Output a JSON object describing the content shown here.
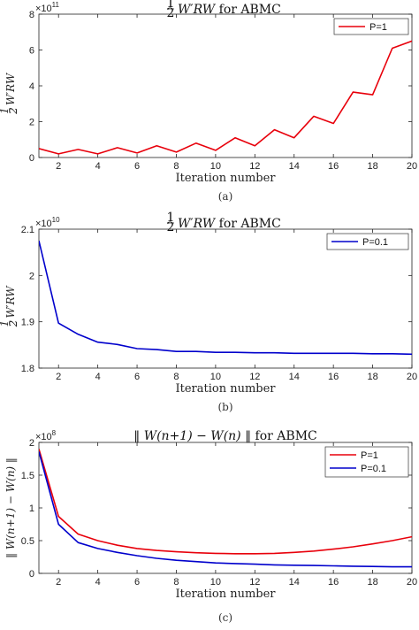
{
  "chart_data": [
    {
      "type": "line",
      "panel": "a",
      "title_frac": "1",
      "title_frac_den": "2",
      "title_math": "W′RW",
      "title_rest": " for ABMC",
      "ylabel_frac": "1",
      "ylabel_frac_den": "2",
      "ylabel_math": "W′RW",
      "xlabel": "Iteration number",
      "caption": "(a)",
      "multiplier_base": "×10",
      "multiplier_exp": "11",
      "xlim": [
        1,
        20
      ],
      "ylim": [
        0,
        8
      ],
      "xticks": [
        2,
        4,
        6,
        8,
        10,
        12,
        14,
        16,
        18,
        20
      ],
      "yticks": [
        0,
        2,
        4,
        6,
        8
      ],
      "legend_placement": "top-right",
      "grid": false,
      "series": [
        {
          "name": "P=1",
          "color": "#e8000b",
          "x": [
            1,
            2,
            3,
            4,
            5,
            6,
            7,
            8,
            9,
            10,
            11,
            12,
            13,
            14,
            15,
            16,
            17,
            18,
            19,
            20
          ],
          "values": [
            0.5,
            0.2,
            0.45,
            0.2,
            0.55,
            0.25,
            0.65,
            0.3,
            0.8,
            0.4,
            1.1,
            0.65,
            1.55,
            1.1,
            2.3,
            1.9,
            3.65,
            3.5,
            6.1,
            6.5
          ]
        }
      ]
    },
    {
      "type": "line",
      "panel": "b",
      "title_frac": "1",
      "title_frac_den": "2",
      "title_math": "W′RW",
      "title_rest": " for ABMC",
      "ylabel_frac": "1",
      "ylabel_frac_den": "2",
      "ylabel_math": "W′RW",
      "xlabel": "Iteration number",
      "caption": "(b)",
      "multiplier_base": "×10",
      "multiplier_exp": "10",
      "xlim": [
        1,
        20
      ],
      "ylim": [
        1.8,
        2.1
      ],
      "xticks": [
        2,
        4,
        6,
        8,
        10,
        12,
        14,
        16,
        18,
        20
      ],
      "yticks": [
        1.8,
        1.9,
        2.0,
        2.1
      ],
      "ytick_labels": [
        "1.8",
        "1.9",
        "2",
        "2.1"
      ],
      "legend_placement": "top-right",
      "grid": false,
      "series": [
        {
          "name": "P=0.1",
          "color": "#0000cc",
          "x": [
            1,
            2,
            3,
            4,
            5,
            6,
            7,
            8,
            9,
            10,
            11,
            12,
            13,
            14,
            15,
            16,
            17,
            18,
            19,
            20
          ],
          "values": [
            2.075,
            1.897,
            1.873,
            1.856,
            1.851,
            1.842,
            1.84,
            1.836,
            1.836,
            1.834,
            1.834,
            1.833,
            1.833,
            1.832,
            1.832,
            1.832,
            1.832,
            1.831,
            1.831,
            1.83
          ]
        }
      ]
    },
    {
      "type": "line",
      "panel": "c",
      "title_math": "‖ W(n+1) − W(n) ‖",
      "title_rest": " for ABMC",
      "ylabel_math": "‖ W(n+1) − W(n) ‖",
      "xlabel": "Iteration number",
      "caption": "(c)",
      "multiplier_base": "×10",
      "multiplier_exp": "8",
      "xlim": [
        1,
        20
      ],
      "ylim": [
        0,
        2
      ],
      "xticks": [
        2,
        4,
        6,
        8,
        10,
        12,
        14,
        16,
        18,
        20
      ],
      "yticks": [
        0,
        0.5,
        1,
        1.5,
        2
      ],
      "legend_placement": "top-right",
      "grid": false,
      "series": [
        {
          "name": "P=1",
          "color": "#e8000b",
          "x": [
            1,
            2,
            3,
            4,
            5,
            6,
            7,
            8,
            9,
            10,
            11,
            12,
            13,
            14,
            15,
            16,
            17,
            18,
            19,
            20
          ],
          "values": [
            1.9,
            0.87,
            0.6,
            0.5,
            0.43,
            0.38,
            0.35,
            0.33,
            0.315,
            0.305,
            0.3,
            0.3,
            0.305,
            0.32,
            0.34,
            0.37,
            0.405,
            0.45,
            0.5,
            0.56
          ]
        },
        {
          "name": "P=0.1",
          "color": "#0000cc",
          "x": [
            1,
            2,
            3,
            4,
            5,
            6,
            7,
            8,
            9,
            10,
            11,
            12,
            13,
            14,
            15,
            16,
            17,
            18,
            19,
            20
          ],
          "values": [
            1.86,
            0.75,
            0.47,
            0.38,
            0.32,
            0.27,
            0.23,
            0.2,
            0.18,
            0.16,
            0.15,
            0.14,
            0.13,
            0.125,
            0.12,
            0.115,
            0.11,
            0.105,
            0.1,
            0.1
          ]
        }
      ]
    }
  ]
}
